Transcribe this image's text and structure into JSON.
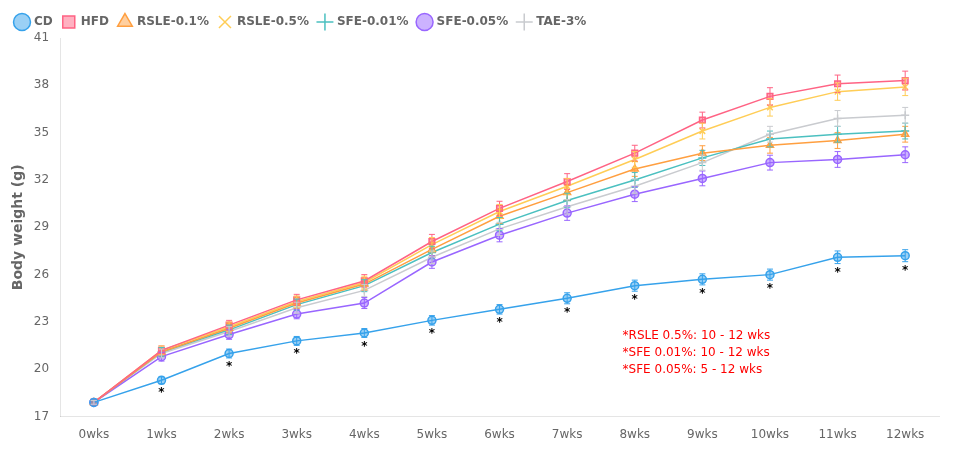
{
  "chart_data": {
    "type": "line",
    "categories": [
      "0wks",
      "1wks",
      "2wks",
      "3wks",
      "4wks",
      "5wks",
      "6wks",
      "7wks",
      "8wks",
      "9wks",
      "10wks",
      "11wks",
      "12wks"
    ],
    "series": [
      {
        "name": "CD",
        "marker": "circle",
        "values": [
          17.9,
          19.3,
          21.0,
          21.8,
          22.3,
          23.1,
          23.8,
          24.5,
          25.3,
          25.7,
          26.0,
          27.1,
          27.2
        ],
        "errors": [
          0.12,
          0.22,
          0.28,
          0.28,
          0.28,
          0.3,
          0.3,
          0.35,
          0.35,
          0.35,
          0.35,
          0.4,
          0.38
        ]
      },
      {
        "name": "HFD",
        "marker": "square",
        "values": [
          17.9,
          21.2,
          22.8,
          24.4,
          25.6,
          28.1,
          30.2,
          31.9,
          33.7,
          35.8,
          37.3,
          38.1,
          38.3
        ],
        "errors": [
          0.12,
          0.28,
          0.3,
          0.35,
          0.4,
          0.45,
          0.45,
          0.5,
          0.5,
          0.5,
          0.55,
          0.55,
          0.6
        ]
      },
      {
        "name": "RSLE-0.1%",
        "marker": "triangle",
        "values": [
          17.9,
          21.1,
          22.6,
          24.2,
          25.4,
          27.6,
          29.7,
          31.2,
          32.7,
          33.7,
          34.2,
          34.5,
          34.9
        ],
        "errors": [
          0.12,
          0.28,
          0.3,
          0.35,
          0.38,
          0.4,
          0.44,
          0.46,
          0.47,
          0.47,
          0.5,
          0.5,
          0.5
        ]
      },
      {
        "name": "RSLE-0.5%",
        "marker": "x",
        "values": [
          17.9,
          21.2,
          22.7,
          24.3,
          25.5,
          27.9,
          30.0,
          31.6,
          33.3,
          35.1,
          36.6,
          37.6,
          37.9
        ],
        "errors": [
          0.12,
          0.28,
          0.3,
          0.35,
          0.4,
          0.45,
          0.45,
          0.5,
          0.5,
          0.5,
          0.55,
          0.55,
          0.55
        ]
      },
      {
        "name": "SFE-0.01%",
        "marker": "plus",
        "values": [
          17.9,
          21.1,
          22.5,
          24.1,
          25.3,
          27.4,
          29.2,
          30.7,
          32.0,
          33.4,
          34.6,
          34.9,
          35.1
        ],
        "errors": [
          0.12,
          0.28,
          0.3,
          0.35,
          0.38,
          0.4,
          0.42,
          0.46,
          0.47,
          0.48,
          0.5,
          0.5,
          0.5
        ]
      },
      {
        "name": "SFE-0.05%",
        "marker": "circle",
        "values": [
          17.9,
          20.8,
          22.2,
          23.5,
          24.2,
          26.8,
          28.5,
          29.9,
          31.1,
          32.1,
          33.1,
          33.3,
          33.6
        ],
        "errors": [
          0.12,
          0.28,
          0.3,
          0.3,
          0.35,
          0.4,
          0.42,
          0.46,
          0.47,
          0.47,
          0.47,
          0.5,
          0.5
        ]
      },
      {
        "name": "TAE-3%",
        "marker": "plus",
        "values": [
          17.9,
          21.0,
          22.4,
          23.9,
          25.0,
          27.1,
          28.9,
          30.3,
          31.6,
          33.1,
          34.9,
          35.9,
          36.1
        ],
        "errors": [
          0.12,
          0.28,
          0.3,
          0.35,
          0.38,
          0.4,
          0.42,
          0.46,
          0.47,
          0.48,
          0.5,
          0.5,
          0.5
        ]
      }
    ],
    "ylabel": "Body weight (g)",
    "ylim": [
      17,
      41
    ],
    "yticks": [
      17,
      20,
      23,
      26,
      29,
      32,
      35,
      38,
      41
    ],
    "grid": false,
    "legend": "upper left",
    "significance": {
      "series": "CD",
      "text": "*",
      "categories": [
        "1wks",
        "2wks",
        "3wks",
        "4wks",
        "5wks",
        "6wks",
        "7wks",
        "8wks",
        "9wks",
        "10wks",
        "11wks",
        "12wks"
      ]
    },
    "annotations": [
      {
        "text": "*RSLE 0.5%: 10 - 12 wks\n*SFE 0.01%: 10 - 12 wks\n*SFE 0.05%: 5 - 12 wks",
        "color": "red"
      }
    ]
  }
}
